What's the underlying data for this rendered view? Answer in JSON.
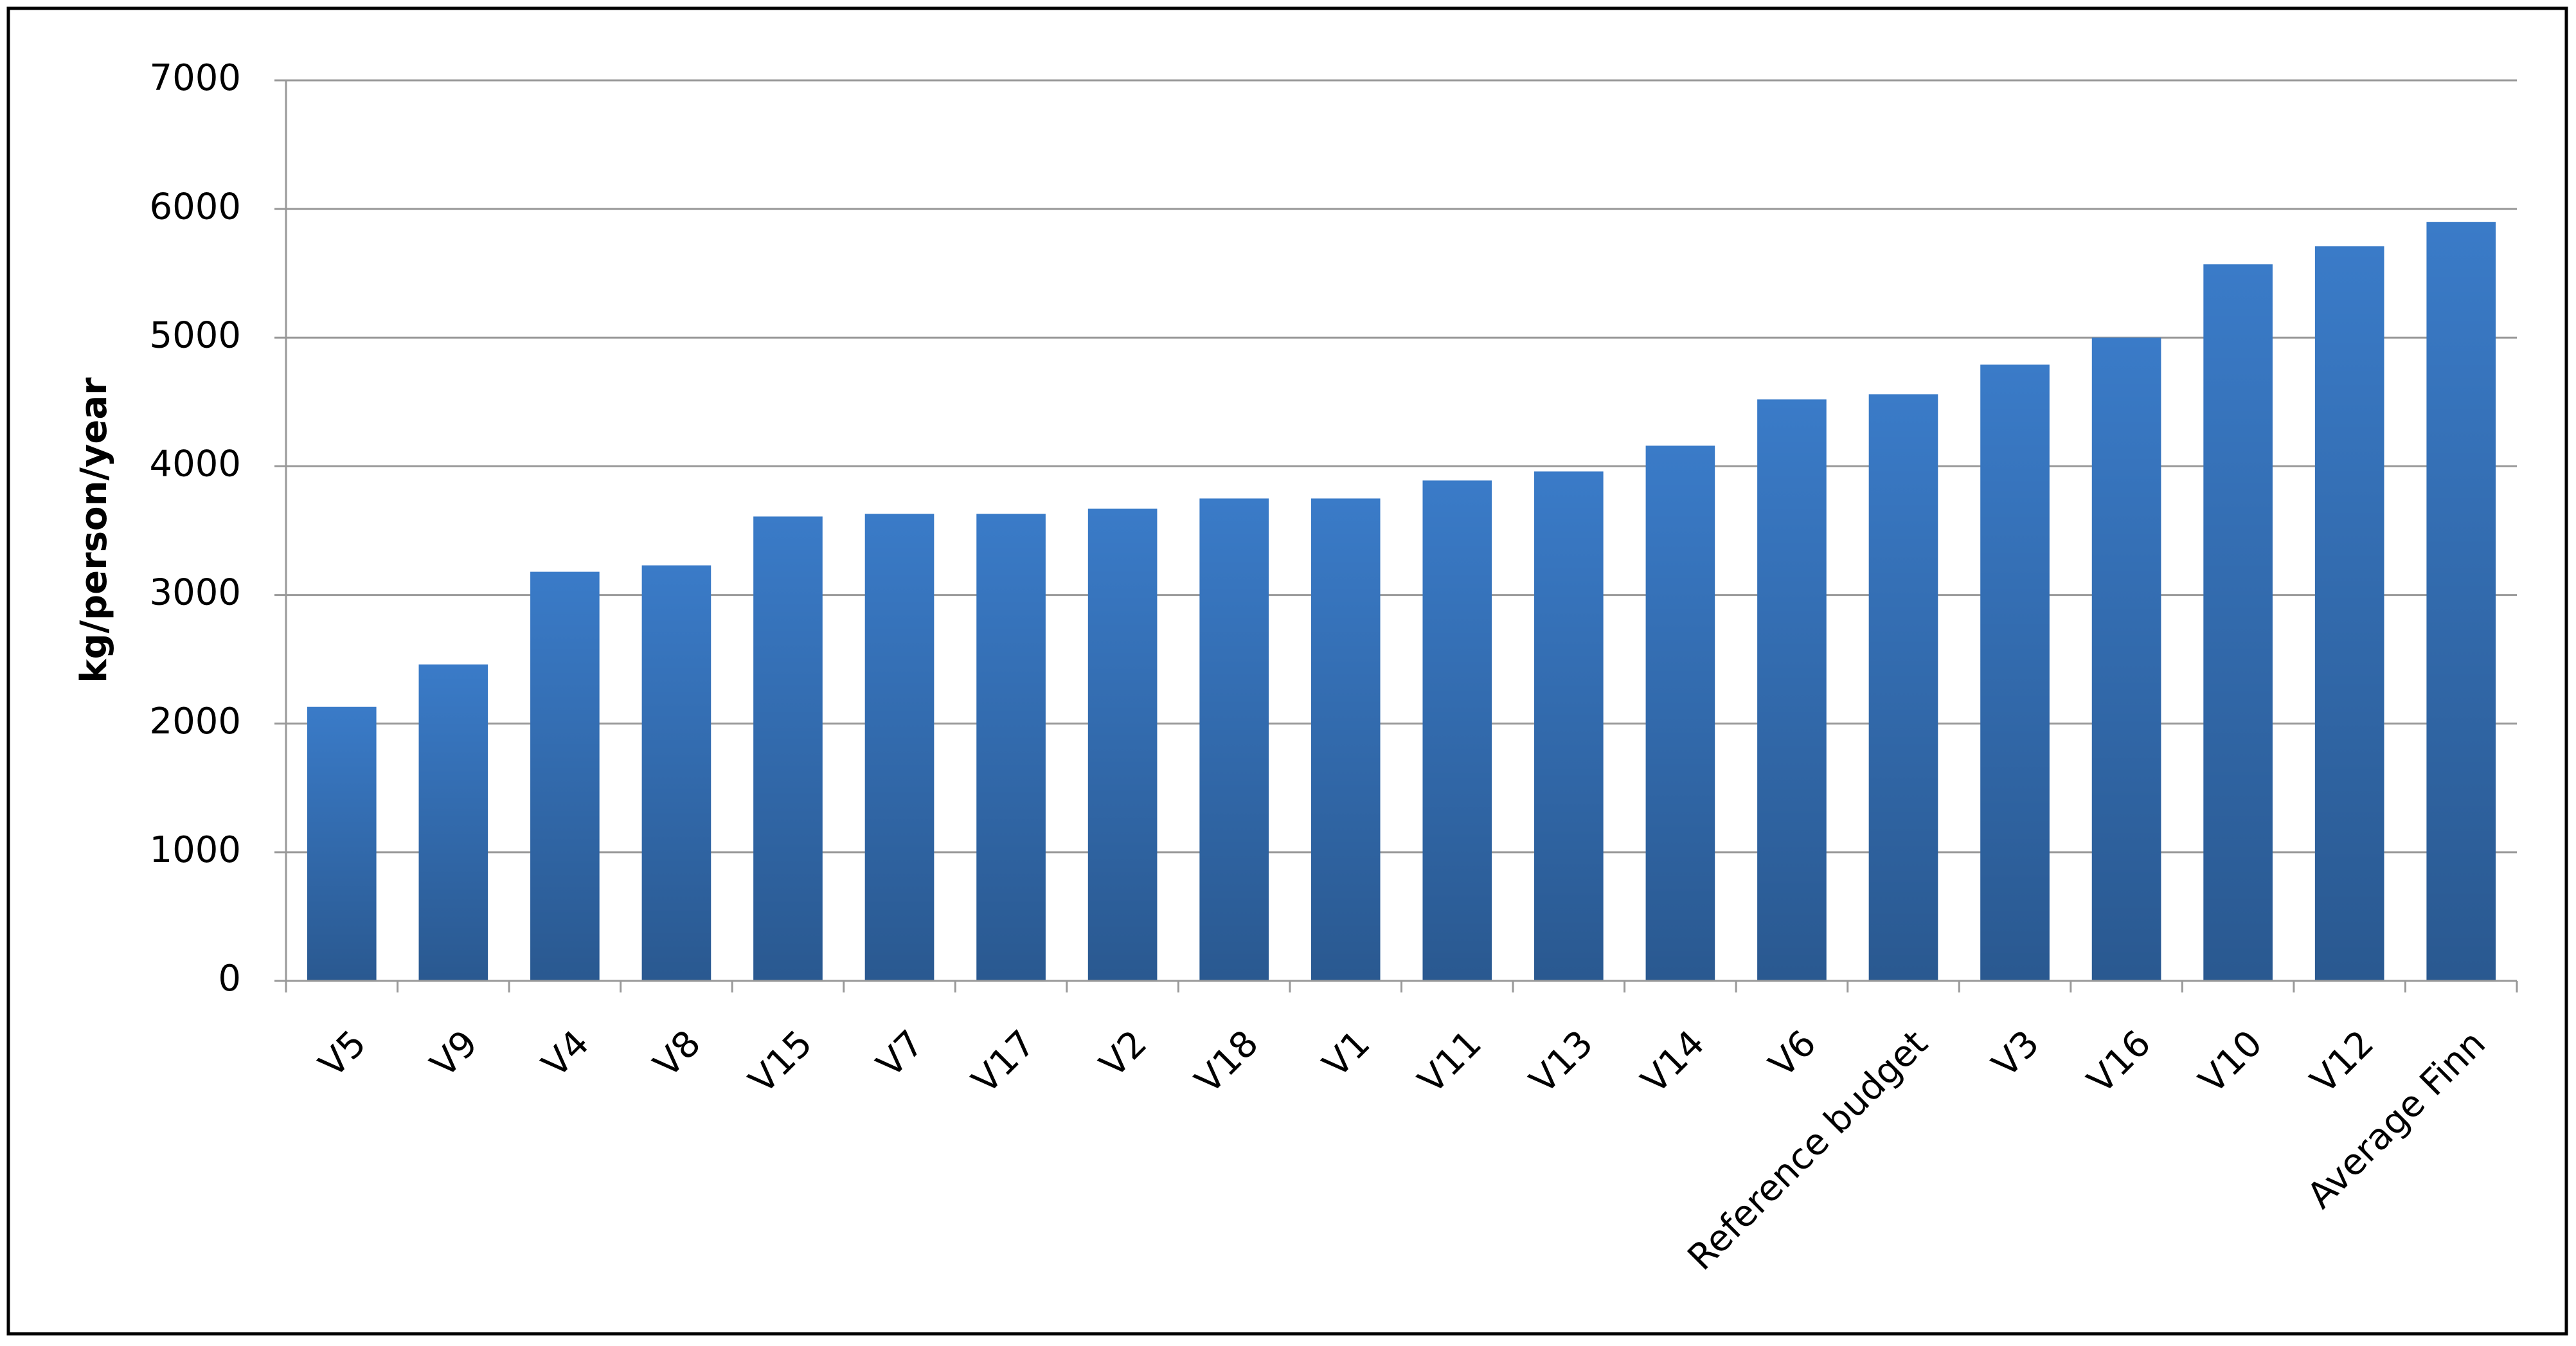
{
  "chart_data": {
    "type": "bar",
    "y_label": "kg/person/year",
    "categories": [
      "V5",
      "V9",
      "V4",
      "V8",
      "V15",
      "V7",
      "V17",
      "V2",
      "V18",
      "V1",
      "V11",
      "V13",
      "V14",
      "V6",
      "Reference budget",
      "V3",
      "V16",
      "V10",
      "V12",
      "Average Finn"
    ],
    "values": [
      2130,
      2460,
      3180,
      3230,
      3610,
      3630,
      3630,
      3670,
      3750,
      3750,
      3890,
      3960,
      4160,
      4520,
      4560,
      4790,
      5000,
      5570,
      5710,
      5900
    ],
    "color": "#3a7bc8",
    "ylim": [
      0,
      7000
    ],
    "yticks": [
      0,
      1000,
      2000,
      3000,
      4000,
      5000,
      6000,
      7000
    ],
    "grid": true
  }
}
